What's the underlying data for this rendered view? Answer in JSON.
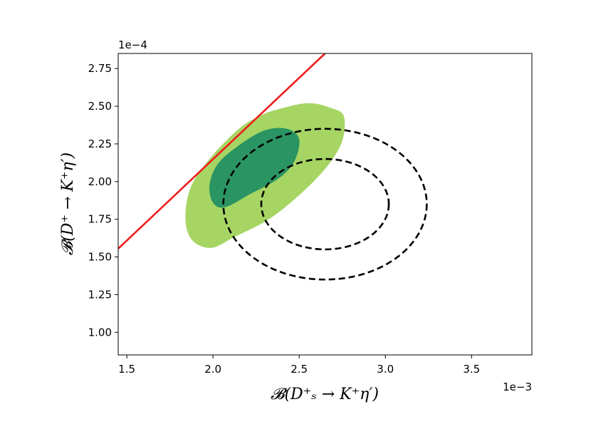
{
  "chart_data": {
    "type": "contour",
    "xlabel": "𝓑(D⁺ₛ → K⁺η′)",
    "ylabel": "𝓑(D⁺ → K⁺η′)",
    "x_offset_label": "1e−3",
    "y_offset_label": "1e−4",
    "xlim": [
      1.45,
      3.85
    ],
    "ylim": [
      0.85,
      2.85
    ],
    "x_ticks": [
      "1.5",
      "2.0",
      "2.5",
      "3.0",
      "3.5"
    ],
    "y_ticks": [
      "1.00",
      "1.25",
      "1.50",
      "1.75",
      "2.00",
      "2.25",
      "2.50",
      "2.75"
    ],
    "grid": false,
    "line": {
      "color": "#ee1c1c",
      "points": [
        [
          1.45,
          1.555
        ],
        [
          2.65,
          2.85
        ]
      ]
    },
    "filled_regions": [
      {
        "level": "outer",
        "color": "#a6d564",
        "points": [
          [
            2.38,
            2.48
          ],
          [
            2.55,
            2.52
          ],
          [
            2.68,
            2.49
          ],
          [
            2.76,
            2.43
          ],
          [
            2.74,
            2.24
          ],
          [
            2.6,
            2.02
          ],
          [
            2.35,
            1.77
          ],
          [
            2.12,
            1.63
          ],
          [
            1.99,
            1.56
          ],
          [
            1.88,
            1.61
          ],
          [
            1.84,
            1.75
          ],
          [
            1.87,
            1.96
          ],
          [
            1.98,
            2.15
          ],
          [
            2.15,
            2.35
          ],
          [
            2.28,
            2.44
          ]
        ]
      },
      {
        "level": "inner",
        "color": "#2a9462",
        "points": [
          [
            2.3,
            2.34
          ],
          [
            2.43,
            2.35
          ],
          [
            2.5,
            2.28
          ],
          [
            2.47,
            2.13
          ],
          [
            2.38,
            2.02
          ],
          [
            2.22,
            1.92
          ],
          [
            2.07,
            1.83
          ],
          [
            2.0,
            1.86
          ],
          [
            1.98,
            1.98
          ],
          [
            2.03,
            2.12
          ],
          [
            2.15,
            2.24
          ]
        ]
      }
    ],
    "dashed_ellipses": [
      {
        "center": [
          2.65,
          1.85
        ],
        "rx": 0.59,
        "ry": 0.5,
        "color": "#000000"
      },
      {
        "center": [
          2.65,
          1.85
        ],
        "rx": 0.37,
        "ry": 0.3,
        "color": "#000000"
      }
    ]
  }
}
